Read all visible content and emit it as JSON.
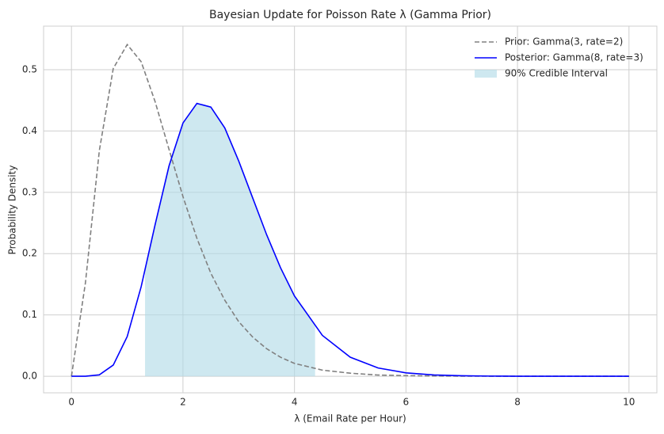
{
  "chart_data": {
    "type": "line",
    "title": "Bayesian Update for Poisson Rate λ (Gamma Prior)",
    "x_label": "λ (Email Rate per Hour)",
    "y_label": "Probability Density",
    "x": [
      0,
      0.25,
      0.5,
      0.75,
      1,
      1.25,
      1.5,
      1.75,
      2,
      2.25,
      2.5,
      2.75,
      3,
      3.25,
      3.5,
      3.75,
      4,
      4.5,
      5,
      5.5,
      6,
      6.5,
      7,
      7.5,
      8,
      8.5,
      9,
      9.5,
      10
    ],
    "series": [
      {
        "name": "Prior: Gamma(3, rate=2)",
        "color": "#808080",
        "dashed": true,
        "values": [
          0,
          0.152,
          0.368,
          0.502,
          0.541,
          0.513,
          0.448,
          0.37,
          0.293,
          0.225,
          0.168,
          0.124,
          0.089,
          0.064,
          0.045,
          0.031,
          0.021,
          0.01,
          0.005,
          0.002,
          0.001,
          0.0005,
          0.0002,
          0.0001,
          0,
          0,
          0,
          0,
          0
        ]
      },
      {
        "name": "Posterior: Gamma(8, rate=3)",
        "color": "#0000ff",
        "dashed": false,
        "values": [
          0,
          0,
          0.0023,
          0.0183,
          0.0648,
          0.146,
          0.247,
          0.343,
          0.413,
          0.445,
          0.439,
          0.405,
          0.351,
          0.291,
          0.231,
          0.177,
          0.131,
          0.0667,
          0.0311,
          0.0135,
          0.0055,
          0.0022,
          0.0008,
          0.0003,
          0.0001,
          0,
          0,
          0,
          0
        ]
      }
    ],
    "interval": {
      "name": "90% Credible Interval",
      "color": "#add8e6",
      "values": [
        1.32,
        4.37
      ]
    },
    "xlim": [
      -0.5,
      10.5
    ],
    "ylim": [
      -0.027,
      0.571
    ],
    "xticks": [
      0,
      2,
      4,
      6,
      8,
      10
    ],
    "yticks": [
      {
        "value": 0,
        "label": "0.0"
      },
      0.1,
      0.2,
      0.3,
      0.4,
      0.5
    ],
    "grid": true,
    "legend": "upper right"
  }
}
